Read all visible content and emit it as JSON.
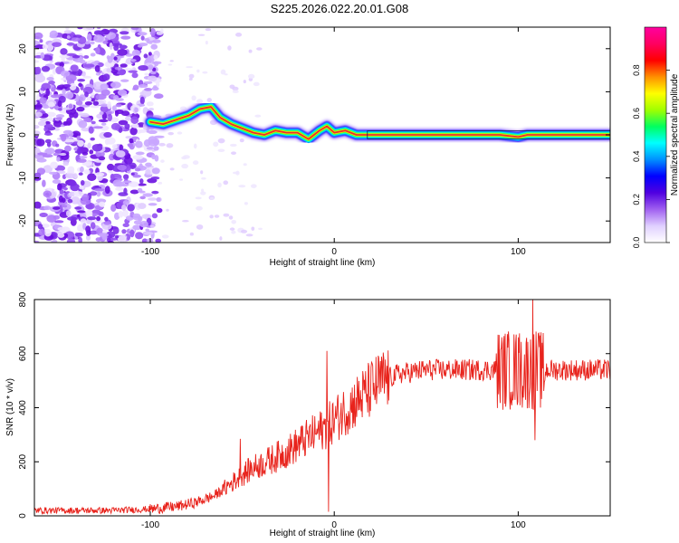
{
  "title": "S225.2026.022.20.01.G08",
  "colors": {
    "snr_line": "#e8231c",
    "signal_core": "#e83030",
    "axis": "#000000",
    "noise_purple": "#8a3cf0",
    "colorbar_stops": [
      "#ffffff",
      "#e0d0ff",
      "#a060f0",
      "#5000e0",
      "#0000ff",
      "#0090ff",
      "#00ffff",
      "#00ff60",
      "#a0ff00",
      "#ffff00",
      "#ff9000",
      "#ff0000",
      "#ff0060",
      "#ff00a0"
    ]
  },
  "chart_data": [
    {
      "type": "heatmap",
      "title": "S225.2026.022.20.01.G08",
      "xlabel": "Height of straight line (km)",
      "ylabel": "Frequency (Hz)",
      "xlim": [
        -163,
        150
      ],
      "ylim": [
        -25,
        25
      ],
      "xticks": [
        "-100",
        "0",
        "100"
      ],
      "yticks": [
        "20",
        "10",
        "0",
        "-10",
        "-20"
      ],
      "colorbar": {
        "label": "Normalized spectral amplitude",
        "range": [
          0,
          1
        ],
        "ticks": [
          "0.0",
          "0.2",
          "0.4",
          "0.6",
          "0.8"
        ]
      },
      "ridge": [
        {
          "x": -100,
          "y": 3
        },
        {
          "x": -93,
          "y": 2.5
        },
        {
          "x": -86,
          "y": 3.5
        },
        {
          "x": -79,
          "y": 4.5
        },
        {
          "x": -73,
          "y": 6
        },
        {
          "x": -67,
          "y": 6.5
        },
        {
          "x": -62,
          "y": 4
        },
        {
          "x": -56,
          "y": 2.5
        },
        {
          "x": -50,
          "y": 1.5
        },
        {
          "x": -44,
          "y": 0.5
        },
        {
          "x": -38,
          "y": 0
        },
        {
          "x": -32,
          "y": 1
        },
        {
          "x": -26,
          "y": 0.5
        },
        {
          "x": -20,
          "y": 0.5
        },
        {
          "x": -14,
          "y": -1
        },
        {
          "x": -8,
          "y": 1
        },
        {
          "x": -4,
          "y": 2
        },
        {
          "x": 0,
          "y": 0.5
        },
        {
          "x": 6,
          "y": 1
        },
        {
          "x": 12,
          "y": 0
        },
        {
          "x": 18,
          "y": 0
        },
        {
          "x": 60,
          "y": 0
        },
        {
          "x": 90,
          "y": 0
        },
        {
          "x": 100,
          "y": -0.5
        },
        {
          "x": 105,
          "y": 0
        },
        {
          "x": 120,
          "y": 0
        },
        {
          "x": 150,
          "y": 0
        }
      ],
      "noise_region": [
        -163,
        -95
      ]
    },
    {
      "type": "line",
      "xlabel": "Height of straight line (km)",
      "ylabel": "SNR (10 * v/v)",
      "xlim": [
        -163,
        150
      ],
      "ylim": [
        0,
        800
      ],
      "xticks": [
        "-100",
        "0",
        "100"
      ],
      "yticks": [
        "0",
        "200",
        "400",
        "600",
        "800"
      ],
      "series": [
        {
          "name": "SNR",
          "trend": [
            {
              "x": -163,
              "y": 20
            },
            {
              "x": -120,
              "y": 20
            },
            {
              "x": -100,
              "y": 25
            },
            {
              "x": -85,
              "y": 35
            },
            {
              "x": -75,
              "y": 50
            },
            {
              "x": -65,
              "y": 75
            },
            {
              "x": -55,
              "y": 125
            },
            {
              "x": -45,
              "y": 175
            },
            {
              "x": -35,
              "y": 205
            },
            {
              "x": -25,
              "y": 240
            },
            {
              "x": -15,
              "y": 285
            },
            {
              "x": -5,
              "y": 325
            },
            {
              "x": 5,
              "y": 385
            },
            {
              "x": 15,
              "y": 440
            },
            {
              "x": 25,
              "y": 495
            },
            {
              "x": 35,
              "y": 525
            },
            {
              "x": 50,
              "y": 540
            },
            {
              "x": 80,
              "y": 540
            },
            {
              "x": 100,
              "y": 540
            },
            {
              "x": 150,
              "y": 540
            }
          ],
          "spikes": [
            {
              "x": -51,
              "y": 285
            },
            {
              "x": -60,
              "y": 90
            },
            {
              "x": -4,
              "y": 610
            },
            {
              "x": -3,
              "y": 15
            },
            {
              "x": 95,
              "y": 650
            },
            {
              "x": 100,
              "y": 660
            },
            {
              "x": 108,
              "y": 800
            },
            {
              "x": 109,
              "y": 280
            },
            {
              "x": 113,
              "y": 640
            }
          ]
        }
      ]
    }
  ]
}
